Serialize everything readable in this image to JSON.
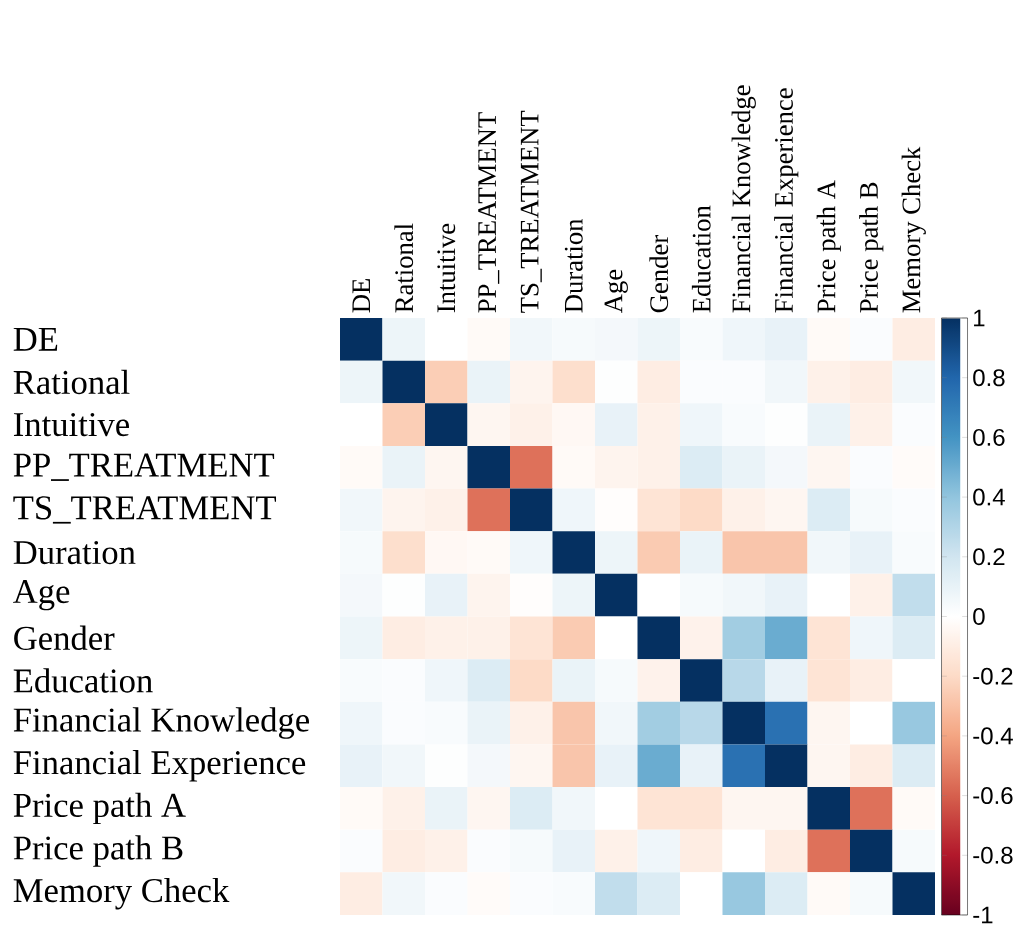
{
  "chart_data": {
    "type": "heatmap",
    "categories": [
      "DE",
      "Rational",
      "Intuitive",
      "PP_TREATMENT",
      "TS_TREATMENT",
      "Duration",
      "Age",
      "Gender",
      "Education",
      "Financial Knowledge",
      "Financial Experience",
      "Price path A",
      "Price path B",
      "Memory Check"
    ],
    "y_categories": [
      "DE",
      "Rational",
      "Intuitive",
      "PP_TREATMENT",
      "TS_TREATMENT",
      "Duration",
      "Age",
      "Gender",
      "Education",
      "Financial Knowledge",
      "Financial Experience",
      "Price path A",
      "Price path B",
      "Memory Check"
    ],
    "cells": [
      [
        1,
        0.08,
        0.0,
        -0.03,
        0.06,
        0.04,
        0.05,
        0.08,
        0.03,
        0.07,
        0.1,
        -0.03,
        0.02,
        -0.1
      ],
      [
        0.08,
        1,
        -0.25,
        0.09,
        -0.06,
        -0.18,
        0.01,
        -0.1,
        0.02,
        0.02,
        0.06,
        -0.08,
        -0.1,
        0.06
      ],
      [
        0.0,
        -0.25,
        1,
        -0.05,
        -0.08,
        -0.04,
        0.1,
        -0.08,
        0.07,
        0.03,
        0.01,
        0.09,
        -0.08,
        0.02
      ],
      [
        -0.03,
        0.09,
        -0.05,
        1,
        -0.55,
        -0.03,
        -0.06,
        -0.08,
        0.15,
        0.09,
        0.05,
        -0.05,
        0.02,
        -0.02
      ],
      [
        0.06,
        -0.06,
        -0.08,
        -0.55,
        1,
        0.07,
        -0.01,
        -0.15,
        -0.2,
        -0.08,
        -0.05,
        0.15,
        0.04,
        0.02
      ],
      [
        0.04,
        -0.18,
        -0.04,
        -0.03,
        0.07,
        1,
        0.08,
        -0.26,
        0.09,
        -0.28,
        -0.28,
        0.06,
        0.1,
        0.03
      ],
      [
        0.05,
        0.01,
        0.1,
        -0.06,
        -0.01,
        0.08,
        1,
        0.0,
        0.04,
        0.06,
        0.1,
        0.0,
        -0.08,
        0.25
      ],
      [
        0.08,
        -0.1,
        -0.08,
        -0.08,
        -0.15,
        -0.26,
        0.0,
        1,
        -0.07,
        0.35,
        0.5,
        -0.15,
        0.07,
        0.15
      ],
      [
        0.03,
        0.02,
        0.07,
        0.15,
        -0.2,
        0.09,
        0.04,
        -0.07,
        1,
        0.28,
        0.1,
        -0.15,
        -0.1,
        0.0
      ],
      [
        0.07,
        0.02,
        0.03,
        0.09,
        -0.08,
        -0.28,
        0.06,
        0.35,
        0.28,
        1,
        0.75,
        -0.05,
        0.0,
        0.38
      ],
      [
        0.1,
        0.06,
        0.01,
        0.05,
        -0.05,
        -0.28,
        0.1,
        0.5,
        0.1,
        0.75,
        1,
        -0.05,
        -0.1,
        0.15
      ],
      [
        -0.03,
        -0.08,
        0.09,
        -0.05,
        0.15,
        0.06,
        0.0,
        -0.15,
        -0.15,
        -0.05,
        -0.05,
        1,
        -0.55,
        -0.03
      ],
      [
        0.02,
        -0.1,
        -0.08,
        0.02,
        0.04,
        0.1,
        -0.08,
        0.07,
        -0.1,
        0.0,
        -0.1,
        -0.55,
        1,
        0.04
      ],
      [
        -0.1,
        0.06,
        0.02,
        -0.02,
        0.02,
        0.03,
        0.25,
        0.15,
        0.0,
        0.38,
        0.15,
        -0.03,
        0.04,
        1
      ]
    ],
    "clim": [
      -1,
      1
    ],
    "cticks": [
      1,
      0.8,
      0.6,
      0.4,
      0.2,
      0,
      -0.2,
      -0.4,
      -0.6,
      -0.8,
      -1
    ]
  }
}
